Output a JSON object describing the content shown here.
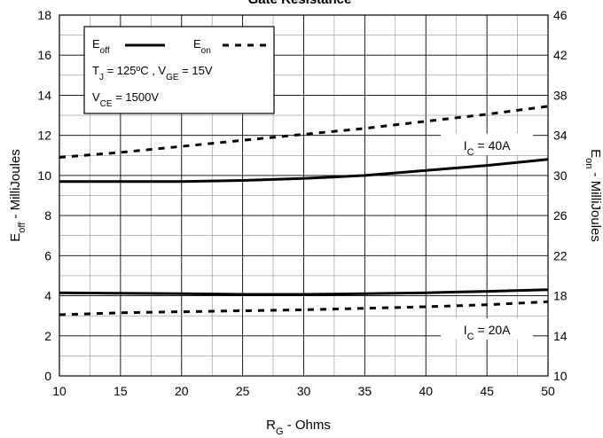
{
  "chart_data": {
    "type": "line",
    "title": "Gate Resistance",
    "xlabel": {
      "main": "R",
      "sub": "G",
      "rest": " - Ohms"
    },
    "ylabel_left": {
      "main": "E",
      "sub": "off",
      "rest": " - MilliJoules"
    },
    "ylabel_right": {
      "main": "E",
      "sub": "on",
      "rest": " - MilliJoules"
    },
    "xlim": [
      10,
      50
    ],
    "ylim_left": [
      0,
      18
    ],
    "ylim_right": [
      10,
      46
    ],
    "x_ticks": [
      10,
      15,
      20,
      25,
      30,
      35,
      40,
      45,
      50
    ],
    "y_left_ticks": [
      0,
      2,
      4,
      6,
      8,
      10,
      12,
      14,
      16,
      18
    ],
    "y_right_ticks": [
      10,
      14,
      18,
      22,
      26,
      30,
      34,
      38,
      42,
      46
    ],
    "grid": true,
    "legend": {
      "placement": "top-left",
      "entries": [
        {
          "main": "E",
          "sub": "off",
          "style": "solid"
        },
        {
          "main": "E",
          "sub": "on",
          "style": "dashed"
        }
      ],
      "conditions": [
        {
          "parts": [
            {
              "t": "T"
            },
            {
              "t": "J",
              "sub": true
            },
            {
              "t": " = 125ºC ,  V"
            },
            {
              "t": "GE",
              "sub": true
            },
            {
              "t": " = 15V"
            }
          ]
        },
        {
          "parts": [
            {
              "t": "V"
            },
            {
              "t": "CE",
              "sub": true
            },
            {
              "t": " = 1500V"
            }
          ]
        }
      ]
    },
    "annotations": [
      {
        "main": "I",
        "sub": "C",
        "rest": " = 40A",
        "x": 45,
        "y": 11.55
      },
      {
        "main": "I",
        "sub": "C",
        "rest": " = 20A",
        "x": 45,
        "y": 2.35
      }
    ],
    "series": [
      {
        "name": "Eoff",
        "label_ref": "I_C = 40A",
        "axis": "left",
        "style": "solid",
        "x": [
          10,
          15,
          20,
          25,
          30,
          35,
          40,
          45,
          50
        ],
        "y": [
          9.7,
          9.7,
          9.7,
          9.75,
          9.85,
          10.0,
          10.25,
          10.5,
          10.8
        ]
      },
      {
        "name": "Eon",
        "label_ref": "I_C = 40A",
        "axis": "right",
        "style": "dashed",
        "x": [
          10,
          15,
          20,
          25,
          30,
          35,
          40,
          45,
          50
        ],
        "y": [
          31.8,
          32.3,
          32.9,
          33.5,
          34.1,
          34.7,
          35.4,
          36.1,
          36.9
        ]
      },
      {
        "name": "Eoff",
        "label_ref": "I_C = 20A",
        "axis": "left",
        "style": "solid",
        "x": [
          10,
          15,
          20,
          25,
          30,
          35,
          40,
          45,
          50
        ],
        "y": [
          4.15,
          4.12,
          4.1,
          4.07,
          4.07,
          4.1,
          4.15,
          4.22,
          4.3
        ]
      },
      {
        "name": "Eon",
        "label_ref": "I_C = 20A",
        "axis": "right",
        "style": "dashed",
        "x": [
          10,
          15,
          20,
          25,
          30,
          35,
          40,
          45,
          50
        ],
        "y": [
          16.1,
          16.3,
          16.4,
          16.5,
          16.6,
          16.75,
          16.9,
          17.1,
          17.4
        ]
      }
    ]
  }
}
